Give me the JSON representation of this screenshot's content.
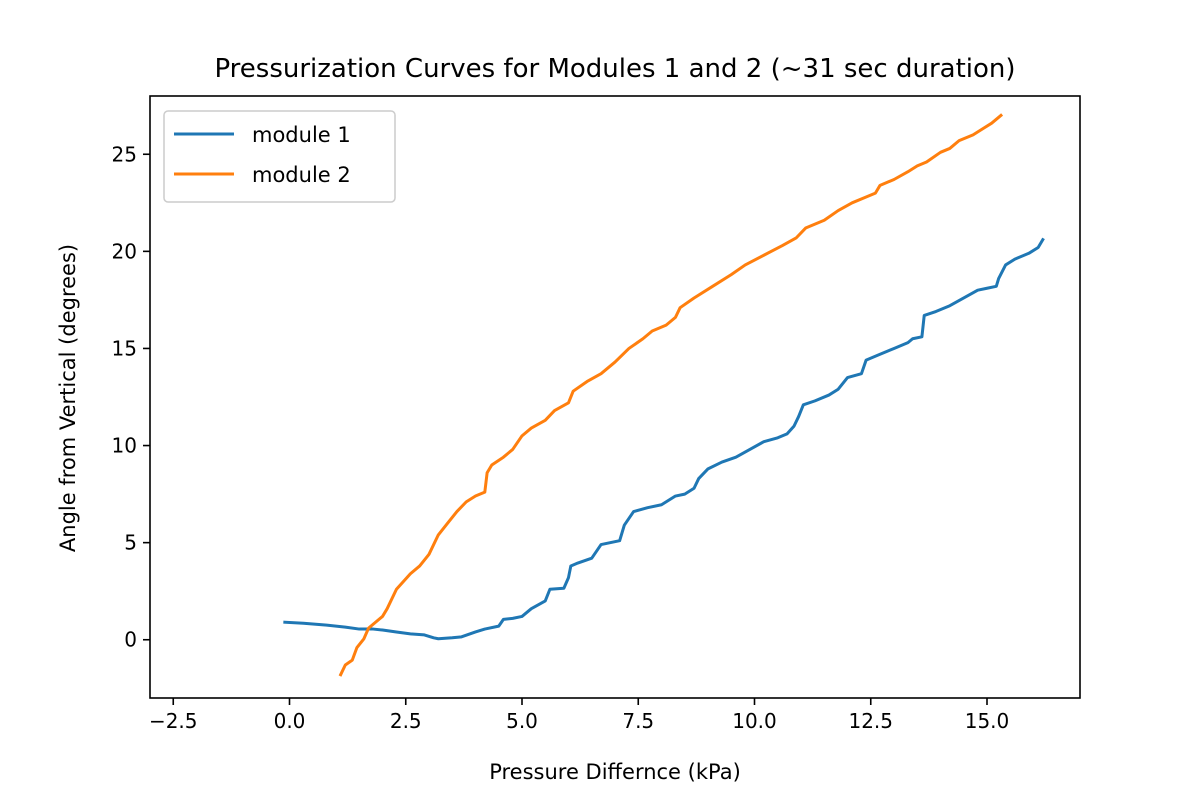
{
  "chart_data": {
    "type": "line",
    "title": "Pressurization Curves for Modules 1 and 2 (~31 sec duration)",
    "xlabel": "Pressure Differnce (kPa)",
    "ylabel": "Angle from Vertical (degrees)",
    "xlim": [
      -3.0,
      17.0
    ],
    "ylim": [
      -3.0,
      28.0
    ],
    "xticks": [
      -2.5,
      0.0,
      2.5,
      5.0,
      7.5,
      10.0,
      12.5,
      15.0
    ],
    "xtick_labels": [
      "−2.5",
      "0.0",
      "2.5",
      "5.0",
      "7.5",
      "10.0",
      "12.5",
      "15.0"
    ],
    "yticks": [
      0,
      5,
      10,
      15,
      20,
      25
    ],
    "ytick_labels": [
      "0",
      "5",
      "10",
      "15",
      "20",
      "25"
    ],
    "grid": false,
    "legend_position": "top-left",
    "series": [
      {
        "name": "module 1",
        "color": "#1f77b4",
        "points": [
          [
            -0.1,
            0.9
          ],
          [
            0.3,
            0.85
          ],
          [
            0.8,
            0.75
          ],
          [
            1.2,
            0.65
          ],
          [
            1.5,
            0.55
          ],
          [
            1.8,
            0.55
          ],
          [
            2.0,
            0.5
          ],
          [
            2.3,
            0.4
          ],
          [
            2.6,
            0.3
          ],
          [
            2.9,
            0.25
          ],
          [
            3.1,
            0.1
          ],
          [
            3.2,
            0.05
          ],
          [
            3.5,
            0.1
          ],
          [
            3.7,
            0.15
          ],
          [
            4.0,
            0.4
          ],
          [
            4.2,
            0.55
          ],
          [
            4.5,
            0.7
          ],
          [
            4.6,
            1.05
          ],
          [
            4.8,
            1.1
          ],
          [
            5.0,
            1.2
          ],
          [
            5.2,
            1.6
          ],
          [
            5.5,
            2.0
          ],
          [
            5.6,
            2.6
          ],
          [
            5.9,
            2.65
          ],
          [
            6.0,
            3.2
          ],
          [
            6.05,
            3.8
          ],
          [
            6.2,
            3.95
          ],
          [
            6.5,
            4.2
          ],
          [
            6.7,
            4.9
          ],
          [
            7.1,
            5.1
          ],
          [
            7.2,
            5.9
          ],
          [
            7.4,
            6.6
          ],
          [
            7.7,
            6.8
          ],
          [
            8.0,
            6.95
          ],
          [
            8.3,
            7.4
          ],
          [
            8.5,
            7.5
          ],
          [
            8.7,
            7.8
          ],
          [
            8.8,
            8.3
          ],
          [
            9.0,
            8.8
          ],
          [
            9.3,
            9.15
          ],
          [
            9.6,
            9.4
          ],
          [
            9.9,
            9.8
          ],
          [
            10.2,
            10.2
          ],
          [
            10.5,
            10.4
          ],
          [
            10.7,
            10.6
          ],
          [
            10.85,
            11.0
          ],
          [
            10.95,
            11.5
          ],
          [
            11.05,
            12.1
          ],
          [
            11.3,
            12.3
          ],
          [
            11.6,
            12.6
          ],
          [
            11.8,
            12.9
          ],
          [
            12.0,
            13.5
          ],
          [
            12.3,
            13.7
          ],
          [
            12.4,
            14.4
          ],
          [
            12.7,
            14.7
          ],
          [
            13.0,
            15.0
          ],
          [
            13.3,
            15.3
          ],
          [
            13.4,
            15.5
          ],
          [
            13.6,
            15.6
          ],
          [
            13.65,
            16.7
          ],
          [
            13.9,
            16.9
          ],
          [
            14.2,
            17.2
          ],
          [
            14.5,
            17.6
          ],
          [
            14.8,
            18.0
          ],
          [
            15.0,
            18.1
          ],
          [
            15.2,
            18.2
          ],
          [
            15.25,
            18.6
          ],
          [
            15.4,
            19.3
          ],
          [
            15.6,
            19.6
          ],
          [
            15.9,
            19.9
          ],
          [
            16.1,
            20.2
          ],
          [
            16.2,
            20.6
          ]
        ]
      },
      {
        "name": "module 2",
        "color": "#ff7f0e",
        "points": [
          [
            1.1,
            -1.8
          ],
          [
            1.2,
            -1.3
          ],
          [
            1.35,
            -1.05
          ],
          [
            1.45,
            -0.4
          ],
          [
            1.6,
            0.05
          ],
          [
            1.7,
            0.6
          ],
          [
            2.0,
            1.2
          ],
          [
            2.1,
            1.6
          ],
          [
            2.3,
            2.6
          ],
          [
            2.6,
            3.4
          ],
          [
            2.8,
            3.8
          ],
          [
            3.0,
            4.4
          ],
          [
            3.2,
            5.4
          ],
          [
            3.4,
            6.0
          ],
          [
            3.6,
            6.6
          ],
          [
            3.8,
            7.1
          ],
          [
            4.0,
            7.4
          ],
          [
            4.2,
            7.6
          ],
          [
            4.25,
            8.6
          ],
          [
            4.35,
            9.0
          ],
          [
            4.6,
            9.4
          ],
          [
            4.8,
            9.8
          ],
          [
            5.0,
            10.5
          ],
          [
            5.2,
            10.9
          ],
          [
            5.5,
            11.3
          ],
          [
            5.7,
            11.8
          ],
          [
            6.0,
            12.2
          ],
          [
            6.1,
            12.8
          ],
          [
            6.4,
            13.3
          ],
          [
            6.7,
            13.7
          ],
          [
            7.0,
            14.3
          ],
          [
            7.3,
            15.0
          ],
          [
            7.6,
            15.5
          ],
          [
            7.8,
            15.9
          ],
          [
            8.1,
            16.2
          ],
          [
            8.3,
            16.6
          ],
          [
            8.4,
            17.1
          ],
          [
            8.7,
            17.6
          ],
          [
            9.1,
            18.2
          ],
          [
            9.5,
            18.8
          ],
          [
            9.8,
            19.3
          ],
          [
            10.2,
            19.8
          ],
          [
            10.6,
            20.3
          ],
          [
            10.9,
            20.7
          ],
          [
            11.1,
            21.2
          ],
          [
            11.5,
            21.6
          ],
          [
            11.8,
            22.1
          ],
          [
            12.1,
            22.5
          ],
          [
            12.4,
            22.8
          ],
          [
            12.6,
            23.0
          ],
          [
            12.7,
            23.4
          ],
          [
            13.0,
            23.7
          ],
          [
            13.3,
            24.1
          ],
          [
            13.5,
            24.4
          ],
          [
            13.7,
            24.6
          ],
          [
            14.0,
            25.1
          ],
          [
            14.2,
            25.3
          ],
          [
            14.4,
            25.7
          ],
          [
            14.7,
            26.0
          ],
          [
            14.9,
            26.3
          ],
          [
            15.1,
            26.6
          ],
          [
            15.3,
            27.0
          ]
        ]
      }
    ]
  }
}
